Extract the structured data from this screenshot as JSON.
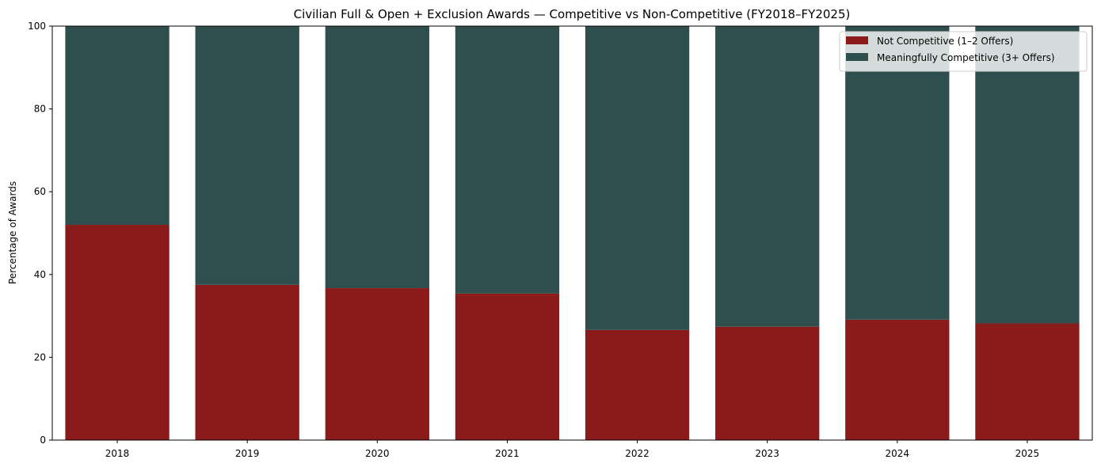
{
  "chart_data": {
    "type": "bar",
    "stacked": true,
    "title": "Civilian Full & Open + Exclusion Awards — Competitive vs Non-Competitive (FY2018–FY2025)",
    "xlabel": "",
    "ylabel": "Percentage of Awards",
    "ylim": [
      0,
      100
    ],
    "yticks": [
      0,
      20,
      40,
      60,
      80,
      100
    ],
    "categories": [
      "2018",
      "2019",
      "2020",
      "2021",
      "2022",
      "2023",
      "2024",
      "2025"
    ],
    "series": [
      {
        "name": "Not Competitive (1–2 Offers)",
        "color": "#8b1a1a",
        "values": [
          52.0,
          37.5,
          36.7,
          35.4,
          26.6,
          27.4,
          29.1,
          28.2
        ]
      },
      {
        "name": "Meaningfully Competitive (3+ Offers)",
        "color": "#2f4f4f",
        "values": [
          48.0,
          62.5,
          63.3,
          64.6,
          73.4,
          72.6,
          70.9,
          71.8
        ]
      }
    ],
    "legend_position": "top-right",
    "grid": false
  }
}
